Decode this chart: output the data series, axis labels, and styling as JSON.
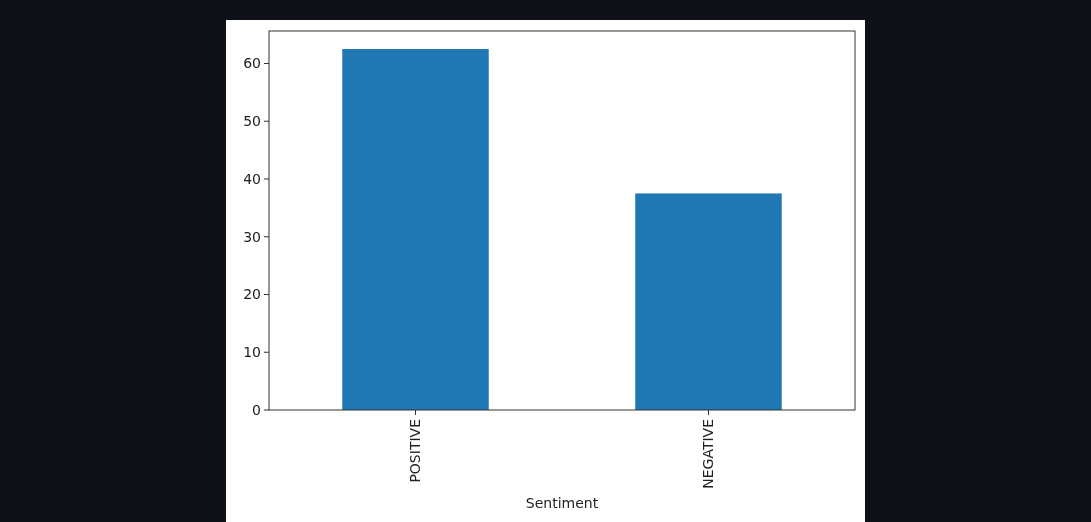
{
  "chart_data": {
    "type": "bar",
    "xlabel": "Sentiment",
    "categories": [
      "POSITIVE",
      "NEGATIVE"
    ],
    "values": [
      62.5,
      37.5
    ],
    "color": "#1f77b4",
    "ylim": [
      0,
      65.625
    ],
    "yticks": [
      0,
      10,
      20,
      30,
      40,
      50,
      60
    ]
  }
}
